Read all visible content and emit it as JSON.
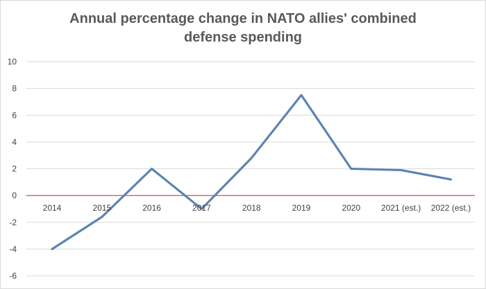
{
  "chart_data": {
    "type": "line",
    "title_lines": [
      "Annual percentage change in NATO allies' combined",
      "defense spending"
    ],
    "categories": [
      "2014",
      "2015",
      "2016",
      "2017",
      "2018",
      "2019",
      "2020",
      "2021 (est.)",
      "2022 (est.)"
    ],
    "series": [
      {
        "values": [
          -4.0,
          -1.6,
          2.0,
          -1.0,
          2.8,
          7.5,
          2.0,
          1.9,
          1.2
        ],
        "color": "#5b84b1"
      }
    ],
    "ylim": [
      -6,
      10
    ],
    "yticks": [
      10,
      8,
      6,
      4,
      2,
      0,
      -2,
      -4,
      -6
    ],
    "grid": true,
    "zero_line_color": "#c0504d",
    "legend": "none"
  }
}
